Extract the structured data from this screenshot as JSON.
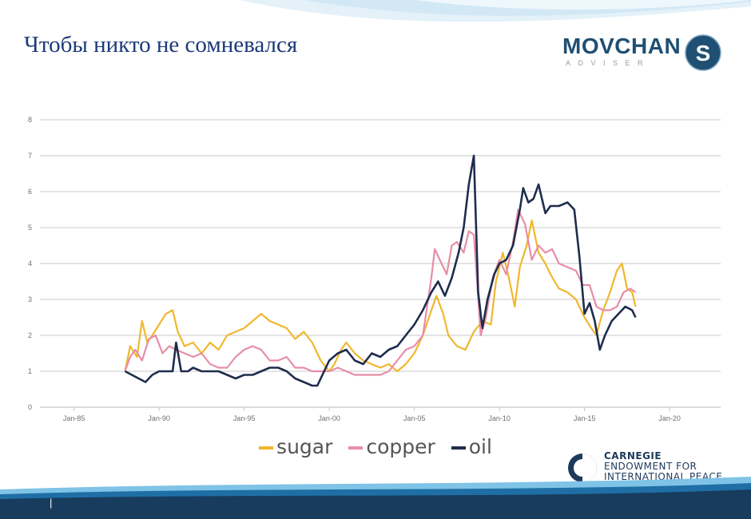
{
  "slide": {
    "title": "Чтобы никто не сомневался",
    "page_marker": "|"
  },
  "logo": {
    "word": "MOVCHAN",
    "letter": "S",
    "sub": "ADVISER"
  },
  "carnegie": {
    "line1": "CARNEGIE",
    "line2": "ENDOWMENT FOR",
    "line3": "INTERNATIONAL PEACE"
  },
  "colors": {
    "sugar": "#f0b72f",
    "copper": "#e78ea6",
    "oil": "#1f2d4d",
    "title": "#1c3a7a",
    "brand": "#1f4f73"
  },
  "chart_data": {
    "type": "line",
    "title": "",
    "xlabel": "",
    "ylabel": "",
    "x_ticks": [
      "Jan-85",
      "Jan-90",
      "Jan-95",
      "Jan-00",
      "Jan-05",
      "Jan-10",
      "Jan-15",
      "Jan-20"
    ],
    "x_tick_years": [
      1985,
      1990,
      1995,
      2000,
      2005,
      2010,
      2015,
      2020
    ],
    "xlim": [
      1983,
      2023
    ],
    "ylim": [
      0,
      8
    ],
    "y_ticks": [
      0,
      1,
      2,
      3,
      4,
      5,
      6,
      7,
      8
    ],
    "grid": true,
    "legend_position": "bottom",
    "series": [
      {
        "name": "sugar",
        "points": [
          [
            1988,
            1.0
          ],
          [
            1988.3,
            1.7
          ],
          [
            1988.7,
            1.4
          ],
          [
            1989,
            2.4
          ],
          [
            1989.3,
            1.8
          ],
          [
            1989.6,
            2.0
          ],
          [
            1990.0,
            2.3
          ],
          [
            1990.4,
            2.6
          ],
          [
            1990.8,
            2.7
          ],
          [
            1991.1,
            2.1
          ],
          [
            1991.5,
            1.7
          ],
          [
            1992.0,
            1.8
          ],
          [
            1992.5,
            1.5
          ],
          [
            1993.0,
            1.8
          ],
          [
            1993.5,
            1.6
          ],
          [
            1994.0,
            2.0
          ],
          [
            1994.5,
            2.1
          ],
          [
            1995.0,
            2.2
          ],
          [
            1995.5,
            2.4
          ],
          [
            1996.0,
            2.6
          ],
          [
            1996.5,
            2.4
          ],
          [
            1997.0,
            2.3
          ],
          [
            1997.5,
            2.2
          ],
          [
            1998.0,
            1.9
          ],
          [
            1998.5,
            2.1
          ],
          [
            1999.0,
            1.8
          ],
          [
            1999.5,
            1.3
          ],
          [
            2000.0,
            1.0
          ],
          [
            2000.3,
            1.2
          ],
          [
            2000.7,
            1.6
          ],
          [
            2001.0,
            1.8
          ],
          [
            2001.5,
            1.5
          ],
          [
            2002.0,
            1.3
          ],
          [
            2002.5,
            1.2
          ],
          [
            2003.0,
            1.1
          ],
          [
            2003.5,
            1.2
          ],
          [
            2004.0,
            1.0
          ],
          [
            2004.5,
            1.2
          ],
          [
            2005.0,
            1.5
          ],
          [
            2005.5,
            2.0
          ],
          [
            2006.0,
            2.7
          ],
          [
            2006.3,
            3.1
          ],
          [
            2006.7,
            2.6
          ],
          [
            2007.0,
            2.0
          ],
          [
            2007.5,
            1.7
          ],
          [
            2008.0,
            1.6
          ],
          [
            2008.5,
            2.1
          ],
          [
            2009.0,
            2.4
          ],
          [
            2009.5,
            2.3
          ],
          [
            2009.8,
            3.5
          ],
          [
            2010.2,
            4.3
          ],
          [
            2010.6,
            3.5
          ],
          [
            2010.9,
            2.8
          ],
          [
            2011.2,
            3.9
          ],
          [
            2011.6,
            4.5
          ],
          [
            2011.9,
            5.2
          ],
          [
            2012.3,
            4.3
          ],
          [
            2012.7,
            4.0
          ],
          [
            2013.0,
            3.7
          ],
          [
            2013.5,
            3.3
          ],
          [
            2014.0,
            3.2
          ],
          [
            2014.5,
            3.0
          ],
          [
            2015.0,
            2.5
          ],
          [
            2015.4,
            2.2
          ],
          [
            2015.7,
            2.0
          ],
          [
            2016.1,
            2.7
          ],
          [
            2016.5,
            3.2
          ],
          [
            2016.9,
            3.8
          ],
          [
            2017.2,
            4.0
          ],
          [
            2017.5,
            3.3
          ],
          [
            2017.8,
            3.2
          ],
          [
            2018.0,
            2.8
          ]
        ]
      },
      {
        "name": "copper",
        "points": [
          [
            1988,
            1.0
          ],
          [
            1988.3,
            1.4
          ],
          [
            1988.6,
            1.6
          ],
          [
            1989.0,
            1.3
          ],
          [
            1989.4,
            1.9
          ],
          [
            1989.8,
            2.0
          ],
          [
            1990.2,
            1.5
          ],
          [
            1990.6,
            1.7
          ],
          [
            1991.0,
            1.6
          ],
          [
            1991.5,
            1.5
          ],
          [
            1992.0,
            1.4
          ],
          [
            1992.5,
            1.5
          ],
          [
            1993.0,
            1.2
          ],
          [
            1993.5,
            1.1
          ],
          [
            1994.0,
            1.1
          ],
          [
            1994.5,
            1.4
          ],
          [
            1995.0,
            1.6
          ],
          [
            1995.5,
            1.7
          ],
          [
            1996.0,
            1.6
          ],
          [
            1996.5,
            1.3
          ],
          [
            1997.0,
            1.3
          ],
          [
            1997.5,
            1.4
          ],
          [
            1998.0,
            1.1
          ],
          [
            1998.5,
            1.1
          ],
          [
            1999.0,
            1.0
          ],
          [
            1999.5,
            1.0
          ],
          [
            2000.0,
            1.0
          ],
          [
            2000.5,
            1.1
          ],
          [
            2001.0,
            1.0
          ],
          [
            2001.5,
            0.9
          ],
          [
            2002.0,
            0.9
          ],
          [
            2002.5,
            0.9
          ],
          [
            2003.0,
            0.9
          ],
          [
            2003.5,
            1.0
          ],
          [
            2004.0,
            1.3
          ],
          [
            2004.5,
            1.6
          ],
          [
            2005.0,
            1.7
          ],
          [
            2005.5,
            2.0
          ],
          [
            2006.0,
            3.6
          ],
          [
            2006.2,
            4.4
          ],
          [
            2006.5,
            4.1
          ],
          [
            2006.9,
            3.7
          ],
          [
            2007.2,
            4.5
          ],
          [
            2007.5,
            4.6
          ],
          [
            2007.9,
            4.3
          ],
          [
            2008.2,
            4.9
          ],
          [
            2008.5,
            4.8
          ],
          [
            2008.9,
            2.0
          ],
          [
            2009.2,
            2.5
          ],
          [
            2009.6,
            3.6
          ],
          [
            2010.0,
            4.1
          ],
          [
            2010.4,
            3.7
          ],
          [
            2010.8,
            4.6
          ],
          [
            2011.1,
            5.5
          ],
          [
            2011.5,
            5.1
          ],
          [
            2011.9,
            4.1
          ],
          [
            2012.3,
            4.5
          ],
          [
            2012.7,
            4.3
          ],
          [
            2013.1,
            4.4
          ],
          [
            2013.5,
            4.0
          ],
          [
            2014.0,
            3.9
          ],
          [
            2014.5,
            3.8
          ],
          [
            2014.9,
            3.4
          ],
          [
            2015.3,
            3.4
          ],
          [
            2015.7,
            2.8
          ],
          [
            2016.1,
            2.7
          ],
          [
            2016.5,
            2.7
          ],
          [
            2016.9,
            2.8
          ],
          [
            2017.3,
            3.2
          ],
          [
            2017.7,
            3.3
          ],
          [
            2018.0,
            3.2
          ]
        ]
      },
      {
        "name": "oil",
        "points": [
          [
            1988,
            1.0
          ],
          [
            1988.4,
            0.9
          ],
          [
            1988.8,
            0.8
          ],
          [
            1989.2,
            0.7
          ],
          [
            1989.6,
            0.9
          ],
          [
            1990.0,
            1.0
          ],
          [
            1990.4,
            1.0
          ],
          [
            1990.8,
            1.0
          ],
          [
            1991.0,
            1.8
          ],
          [
            1991.3,
            1.0
          ],
          [
            1991.7,
            1.0
          ],
          [
            1992.0,
            1.1
          ],
          [
            1992.5,
            1.0
          ],
          [
            1993.0,
            1.0
          ],
          [
            1993.5,
            1.0
          ],
          [
            1994.0,
            0.9
          ],
          [
            1994.5,
            0.8
          ],
          [
            1995.0,
            0.9
          ],
          [
            1995.5,
            0.9
          ],
          [
            1996.0,
            1.0
          ],
          [
            1996.5,
            1.1
          ],
          [
            1997.0,
            1.1
          ],
          [
            1997.5,
            1.0
          ],
          [
            1998.0,
            0.8
          ],
          [
            1998.5,
            0.7
          ],
          [
            1999.0,
            0.6
          ],
          [
            1999.3,
            0.6
          ],
          [
            1999.7,
            1.0
          ],
          [
            2000.0,
            1.3
          ],
          [
            2000.5,
            1.5
          ],
          [
            2001.0,
            1.6
          ],
          [
            2001.5,
            1.3
          ],
          [
            2002.0,
            1.2
          ],
          [
            2002.5,
            1.5
          ],
          [
            2003.0,
            1.4
          ],
          [
            2003.5,
            1.6
          ],
          [
            2004.0,
            1.7
          ],
          [
            2004.5,
            2.0
          ],
          [
            2005.0,
            2.3
          ],
          [
            2005.5,
            2.7
          ],
          [
            2006.0,
            3.2
          ],
          [
            2006.4,
            3.5
          ],
          [
            2006.8,
            3.1
          ],
          [
            2007.2,
            3.6
          ],
          [
            2007.6,
            4.3
          ],
          [
            2007.9,
            5.0
          ],
          [
            2008.2,
            6.2
          ],
          [
            2008.5,
            7.0
          ],
          [
            2008.75,
            3.2
          ],
          [
            2009.0,
            2.2
          ],
          [
            2009.3,
            3.0
          ],
          [
            2009.7,
            3.7
          ],
          [
            2010.0,
            4.0
          ],
          [
            2010.4,
            4.1
          ],
          [
            2010.8,
            4.5
          ],
          [
            2011.2,
            5.5
          ],
          [
            2011.4,
            6.1
          ],
          [
            2011.7,
            5.7
          ],
          [
            2012.0,
            5.8
          ],
          [
            2012.3,
            6.2
          ],
          [
            2012.7,
            5.4
          ],
          [
            2013.0,
            5.6
          ],
          [
            2013.5,
            5.6
          ],
          [
            2014.0,
            5.7
          ],
          [
            2014.4,
            5.5
          ],
          [
            2014.7,
            4.2
          ],
          [
            2015.0,
            2.6
          ],
          [
            2015.3,
            2.9
          ],
          [
            2015.6,
            2.4
          ],
          [
            2015.9,
            1.6
          ],
          [
            2016.2,
            2.0
          ],
          [
            2016.6,
            2.4
          ],
          [
            2017.0,
            2.6
          ],
          [
            2017.4,
            2.8
          ],
          [
            2017.8,
            2.7
          ],
          [
            2018.0,
            2.5
          ]
        ]
      }
    ]
  }
}
